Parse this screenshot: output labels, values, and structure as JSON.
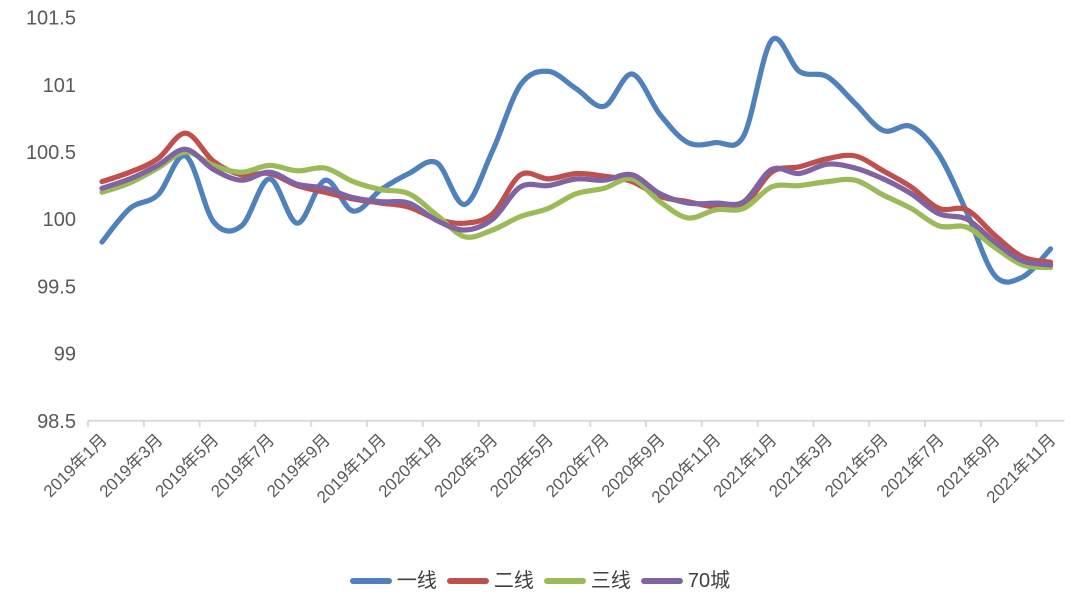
{
  "chart_data": {
    "type": "line",
    "title": "",
    "xlabel": "",
    "ylabel": "",
    "grid": false,
    "legend_position": "bottom",
    "axis_color": "#D9D9D9",
    "label_color": "#595959",
    "legend_text_color": "#404040",
    "ylim": [
      98.5,
      101.5
    ],
    "ytick_labels": [
      "98.5",
      "99",
      "99.5",
      "100",
      "100.5",
      "101",
      "101.5"
    ],
    "x_label_every": 2,
    "categories": [
      "2019年1月",
      "2019年2月",
      "2019年3月",
      "2019年4月",
      "2019年5月",
      "2019年6月",
      "2019年7月",
      "2019年8月",
      "2019年9月",
      "2019年10月",
      "2019年11月",
      "2019年12月",
      "2020年1月",
      "2020年2月",
      "2020年3月",
      "2020年4月",
      "2020年5月",
      "2020年6月",
      "2020年7月",
      "2020年8月",
      "2020年9月",
      "2020年10月",
      "2020年11月",
      "2020年12月",
      "2021年1月",
      "2021年2月",
      "2021年3月",
      "2021年4月",
      "2021年5月",
      "2021年6月",
      "2021年7月",
      "2021年8月",
      "2021年9月",
      "2021年10月",
      "2021年11月"
    ],
    "series": [
      {
        "id": "first-tier",
        "name": "一线",
        "color": "#4F81BD",
        "values": [
          99.83,
          100.08,
          100.18,
          100.47,
          99.98,
          99.95,
          100.3,
          99.97,
          100.29,
          100.06,
          100.22,
          100.34,
          100.42,
          100.11,
          100.51,
          101.0,
          101.1,
          100.97,
          100.84,
          101.08,
          100.78,
          100.57,
          100.57,
          100.62,
          101.33,
          101.1,
          101.06,
          100.86,
          100.66,
          100.69,
          100.48,
          100.05,
          99.58,
          99.57,
          99.78
        ]
      },
      {
        "id": "second-tier",
        "name": "二线",
        "color": "#C0504D",
        "values": [
          100.28,
          100.35,
          100.45,
          100.64,
          100.43,
          100.33,
          100.34,
          100.25,
          100.2,
          100.15,
          100.12,
          100.09,
          100.0,
          99.97,
          100.04,
          100.33,
          100.3,
          100.34,
          100.32,
          100.28,
          100.17,
          100.13,
          100.09,
          100.1,
          100.35,
          100.39,
          100.45,
          100.47,
          100.36,
          100.24,
          100.08,
          100.07,
          99.88,
          99.72,
          99.68
        ]
      },
      {
        "id": "third-tier",
        "name": "三线",
        "color": "#9BBB59",
        "values": [
          100.2,
          100.27,
          100.38,
          100.5,
          100.4,
          100.35,
          100.4,
          100.36,
          100.38,
          100.28,
          100.22,
          100.19,
          100.03,
          99.87,
          99.92,
          100.02,
          100.08,
          100.19,
          100.23,
          100.3,
          100.13,
          100.01,
          100.07,
          100.08,
          100.24,
          100.25,
          100.28,
          100.29,
          100.18,
          100.08,
          99.95,
          99.94,
          99.79,
          99.66,
          99.64
        ]
      },
      {
        "id": "seventy-cities",
        "name": "70城",
        "color": "#8064A2",
        "values": [
          100.23,
          100.3,
          100.4,
          100.52,
          100.37,
          100.29,
          100.35,
          100.26,
          100.23,
          100.16,
          100.13,
          100.12,
          99.99,
          99.92,
          100.0,
          100.24,
          100.25,
          100.3,
          100.29,
          100.33,
          100.19,
          100.12,
          100.12,
          100.13,
          100.37,
          100.34,
          100.41,
          100.38,
          100.3,
          100.19,
          100.04,
          100.0,
          99.83,
          99.69,
          99.66
        ]
      }
    ]
  }
}
